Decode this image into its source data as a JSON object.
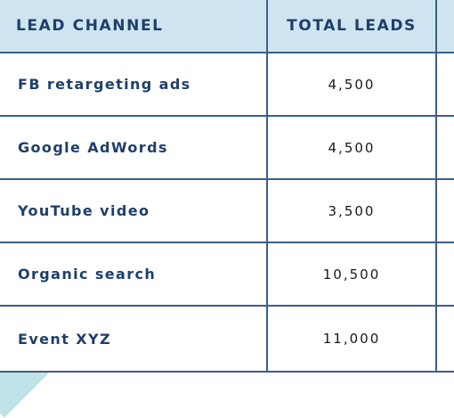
{
  "table": {
    "headers": {
      "channel": "LEAD CHANNEL",
      "total_leads": "TOTAL LEADS"
    },
    "rows": [
      {
        "channel": "FB retargeting ads",
        "total_leads": "4,500"
      },
      {
        "channel": "Google AdWords",
        "total_leads": "4,500"
      },
      {
        "channel": "YouTube video",
        "total_leads": "3,500"
      },
      {
        "channel": "Organic search",
        "total_leads": "10,500"
      },
      {
        "channel": "Event XYZ",
        "total_leads": "11,000"
      }
    ]
  },
  "colors": {
    "header_background": "#cfe4f1",
    "header_text": "#1e3f6b",
    "border": "#3d5f86",
    "channel_text": "#1e3f6b",
    "value_text": "#1a1a1a",
    "corner_accent": "#bfe3e6"
  }
}
